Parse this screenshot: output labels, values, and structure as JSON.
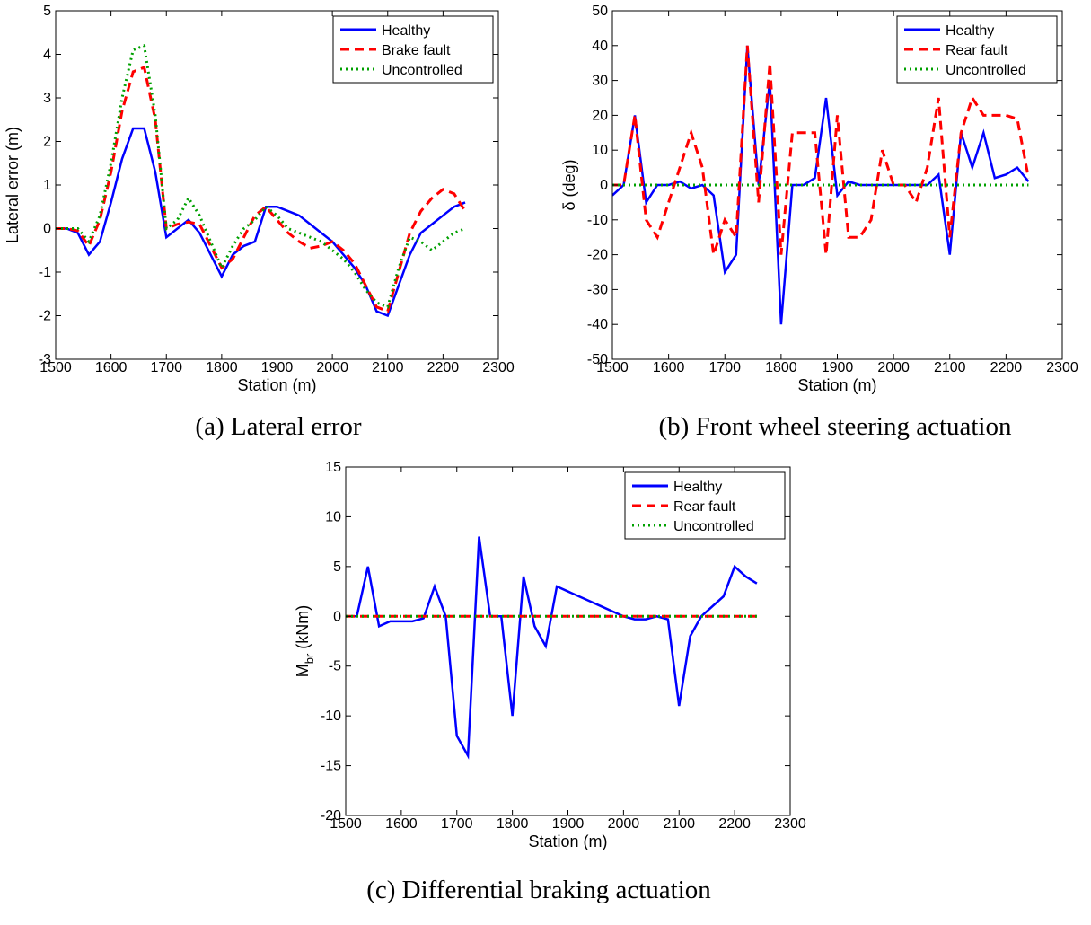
{
  "chart_data": [
    {
      "type": "line",
      "caption": "(a) Lateral error",
      "xlabel": "Station (m)",
      "ylabel": {
        "main": "Lateral error (m)"
      },
      "x": [
        1500,
        1520,
        1540,
        1560,
        1580,
        1600,
        1620,
        1640,
        1660,
        1680,
        1700,
        1720,
        1740,
        1760,
        1780,
        1800,
        1820,
        1840,
        1860,
        1880,
        1900,
        1920,
        1940,
        1960,
        1980,
        2000,
        2020,
        2040,
        2060,
        2080,
        2100,
        2120,
        2140,
        2160,
        2180,
        2200,
        2220,
        2240
      ],
      "series": [
        {
          "name": "Healthy",
          "color": "#0000ff",
          "dash": "solid",
          "values": [
            0,
            0,
            -0.1,
            -0.6,
            -0.3,
            0.6,
            1.6,
            2.3,
            2.3,
            1.3,
            -0.2,
            0,
            0.2,
            -0.1,
            -0.6,
            -1.1,
            -0.6,
            -0.4,
            -0.3,
            0.5,
            0.5,
            0.4,
            0.3,
            0.1,
            -0.1,
            -0.3,
            -0.6,
            -0.9,
            -1.3,
            -1.9,
            -2,
            -1.3,
            -0.6,
            -0.1,
            0.1,
            0.3,
            0.5,
            0.6
          ]
        },
        {
          "name": "Brake fault",
          "color": "#ff0000",
          "dash": "dashed",
          "values": [
            0,
            0,
            -0.05,
            -0.4,
            0.2,
            1.3,
            2.7,
            3.6,
            3.7,
            2.5,
            0,
            0.1,
            0.15,
            0.1,
            -0.4,
            -0.9,
            -0.7,
            -0.2,
            0.3,
            0.5,
            0.2,
            -0.1,
            -0.3,
            -0.45,
            -0.4,
            -0.3,
            -0.5,
            -0.8,
            -1.3,
            -1.8,
            -1.9,
            -1,
            -0.1,
            0.4,
            0.7,
            0.9,
            0.8,
            0.4
          ]
        },
        {
          "name": "Uncontrolled",
          "color": "#00a000",
          "dash": "dotted",
          "values": [
            0,
            0,
            0,
            -0.3,
            0.3,
            1.5,
            3,
            4.1,
            4.2,
            2.6,
            0,
            0.2,
            0.7,
            0.3,
            -0.3,
            -0.9,
            -0.4,
            0,
            0.2,
            0.5,
            0.3,
            0,
            -0.1,
            -0.2,
            -0.3,
            -0.5,
            -0.7,
            -1,
            -1.4,
            -1.7,
            -1.8,
            -0.9,
            -0.2,
            -0.3,
            -0.5,
            -0.3,
            -0.1,
            0
          ]
        }
      ],
      "xlim": [
        1500,
        2300
      ],
      "xticks": [
        1500,
        1600,
        1700,
        1800,
        1900,
        2000,
        2100,
        2200,
        2300
      ],
      "ylim": [
        -3,
        5
      ],
      "yticks": [
        -3,
        -2,
        -1,
        0,
        1,
        2,
        3,
        4,
        5
      ],
      "legend": "upper right"
    },
    {
      "type": "line",
      "caption": "(b) Front wheel steering actuation",
      "xlabel": "Station (m)",
      "ylabel": {
        "main": "δ (deg)"
      },
      "x": [
        1500,
        1520,
        1540,
        1560,
        1580,
        1600,
        1620,
        1640,
        1660,
        1680,
        1700,
        1720,
        1740,
        1760,
        1780,
        1800,
        1820,
        1840,
        1860,
        1880,
        1900,
        1920,
        1940,
        1960,
        1980,
        2000,
        2020,
        2040,
        2060,
        2080,
        2100,
        2120,
        2140,
        2160,
        2180,
        2200,
        2220,
        2240
      ],
      "series": [
        {
          "name": "Healthy",
          "color": "#0000ff",
          "dash": "solid",
          "values": [
            -3,
            0,
            20,
            -5,
            0,
            0,
            1,
            -1,
            0,
            -3,
            -25,
            -20,
            40,
            0,
            30,
            -40,
            0,
            0,
            2,
            25,
            -3,
            1,
            0,
            0,
            0,
            0,
            0,
            0,
            0,
            3,
            -20,
            15,
            5,
            15,
            2,
            3,
            5,
            1
          ]
        },
        {
          "name": "Rear fault",
          "color": "#ff0000",
          "dash": "dashed",
          "values": [
            0,
            0,
            20,
            -10,
            -15,
            -5,
            5,
            15,
            5,
            -20,
            -10,
            -15,
            40,
            -5,
            35,
            -20,
            15,
            15,
            15,
            -20,
            20,
            -15,
            -15,
            -10,
            10,
            0,
            0,
            -5,
            5,
            25,
            -15,
            15,
            25,
            20,
            20,
            20,
            19,
            2
          ]
        },
        {
          "name": "Uncontrolled",
          "color": "#00a000",
          "dash": "dotted",
          "values": [
            0,
            0,
            0,
            0,
            0,
            0,
            0,
            0,
            0,
            0,
            0,
            0,
            0,
            0,
            0,
            0,
            0,
            0,
            0,
            0,
            0,
            0,
            0,
            0,
            0,
            0,
            0,
            0,
            0,
            0,
            0,
            0,
            0,
            0,
            0,
            0,
            0,
            0
          ]
        }
      ],
      "xlim": [
        1500,
        2300
      ],
      "xticks": [
        1500,
        1600,
        1700,
        1800,
        1900,
        2000,
        2100,
        2200,
        2300
      ],
      "ylim": [
        -50,
        50
      ],
      "yticks": [
        -50,
        -40,
        -30,
        -20,
        -10,
        0,
        10,
        20,
        30,
        40,
        50
      ],
      "legend": "upper right"
    },
    {
      "type": "line",
      "caption": "(c) Differential braking actuation",
      "xlabel": "Station (m)",
      "ylabel": {
        "main": "M",
        "sub": "br",
        "unit": "(kNm)"
      },
      "x": [
        1500,
        1520,
        1540,
        1560,
        1580,
        1600,
        1620,
        1640,
        1660,
        1680,
        1700,
        1720,
        1740,
        1760,
        1780,
        1800,
        1820,
        1840,
        1860,
        1880,
        1900,
        1920,
        1940,
        1960,
        1980,
        2000,
        2020,
        2040,
        2060,
        2080,
        2100,
        2120,
        2140,
        2160,
        2180,
        2200,
        2220,
        2240
      ],
      "series": [
        {
          "name": "Healthy",
          "color": "#0000ff",
          "dash": "solid",
          "values": [
            0,
            0,
            5,
            -1,
            -0.5,
            -0.5,
            -0.5,
            -0.2,
            3,
            0,
            -12,
            -14,
            8,
            0,
            0,
            -10,
            4,
            -1,
            -3,
            3,
            2.5,
            2,
            1.5,
            1,
            0.5,
            0,
            -0.3,
            -0.3,
            0,
            -0.3,
            -9,
            -2,
            0,
            1,
            2,
            5,
            4,
            3.3
          ]
        },
        {
          "name": "Rear fault",
          "color": "#ff0000",
          "dash": "dashed",
          "values": [
            0,
            0,
            0,
            0,
            0,
            0,
            0,
            0,
            0,
            0,
            0,
            0,
            0,
            0,
            0,
            0,
            0,
            0,
            0,
            0,
            0,
            0,
            0,
            0,
            0,
            0,
            0,
            0,
            0,
            0,
            0,
            0,
            0,
            0,
            0,
            0,
            0,
            0
          ]
        },
        {
          "name": "Uncontrolled",
          "color": "#00a000",
          "dash": "dotted",
          "values": [
            0,
            0,
            0,
            0,
            0,
            0,
            0,
            0,
            0,
            0,
            0,
            0,
            0,
            0,
            0,
            0,
            0,
            0,
            0,
            0,
            0,
            0,
            0,
            0,
            0,
            0,
            0,
            0,
            0,
            0,
            0,
            0,
            0,
            0,
            0,
            0,
            0,
            0
          ]
        }
      ],
      "xlim": [
        1500,
        2300
      ],
      "xticks": [
        1500,
        1600,
        1700,
        1800,
        1900,
        2000,
        2100,
        2200,
        2300
      ],
      "ylim": [
        -20,
        15
      ],
      "yticks": [
        -20,
        -15,
        -10,
        -5,
        0,
        5,
        10,
        15
      ],
      "legend": "upper right"
    }
  ]
}
